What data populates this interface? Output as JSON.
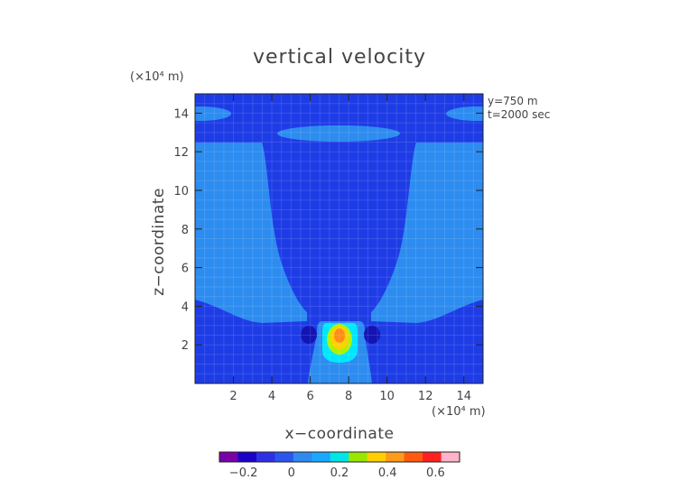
{
  "chart_data": {
    "type": "heatmap",
    "title": "vertical velocity",
    "xlabel": "x−coordinate",
    "ylabel": "z−coordinate",
    "x_unit": "(×10⁴ m)",
    "y_unit": "(×10⁴ m)",
    "xlim": [
      0,
      15
    ],
    "ylim": [
      0,
      15
    ],
    "x_ticks": [
      2,
      4,
      6,
      8,
      10,
      12,
      14
    ],
    "y_ticks": [
      2,
      4,
      6,
      8,
      10,
      12,
      14
    ],
    "annotations": [
      "y=750  m",
      "t=2000  sec"
    ],
    "colorbar": {
      "ticks": [
        -0.2,
        0,
        0.2,
        0.4,
        0.6
      ],
      "tick_labels": [
        "−0.2",
        "0",
        "0.2",
        "0.4",
        "0.6"
      ],
      "range": [
        -0.3,
        0.7
      ],
      "colors": [
        "#7a00a8",
        "#1a00c8",
        "#2e2ee6",
        "#2b55ee",
        "#2f8af0",
        "#1aa8ff",
        "#00e6e6",
        "#9be600",
        "#ffd000",
        "#ff9a1a",
        "#ff5a10",
        "#ff2020",
        "#ffb3c8"
      ]
    },
    "levels": [
      {
        "region": "background",
        "value": 0.0,
        "color": "#1e3ce6"
      },
      {
        "region": "upper-left-lobe",
        "value": 0.05,
        "color": "#2d8cf0"
      },
      {
        "region": "upper-right-lobe",
        "value": 0.05,
        "color": "#2d8cf0"
      },
      {
        "region": "top-center-band",
        "value": 0.05,
        "color": "#2d8cf0"
      },
      {
        "region": "left-small-band",
        "value": 0.05,
        "color": "#2d8cf0"
      },
      {
        "region": "right-small-band",
        "value": 0.05,
        "color": "#2d8cf0"
      },
      {
        "region": "central-plume",
        "value": 0.05,
        "color": "#2d8cf0"
      },
      {
        "region": "cyan-core",
        "value": 0.15,
        "color": "#00e6ff"
      },
      {
        "region": "green-core",
        "value": 0.3,
        "color": "#b3f000"
      },
      {
        "region": "yellow-core",
        "value": 0.4,
        "color": "#ffd000"
      },
      {
        "region": "orange-core",
        "value": 0.5,
        "color": "#ff8c1a"
      },
      {
        "region": "left-downdraft",
        "value": -0.05,
        "color": "#1414b4"
      },
      {
        "region": "right-downdraft",
        "value": -0.05,
        "color": "#1414b4"
      }
    ]
  }
}
